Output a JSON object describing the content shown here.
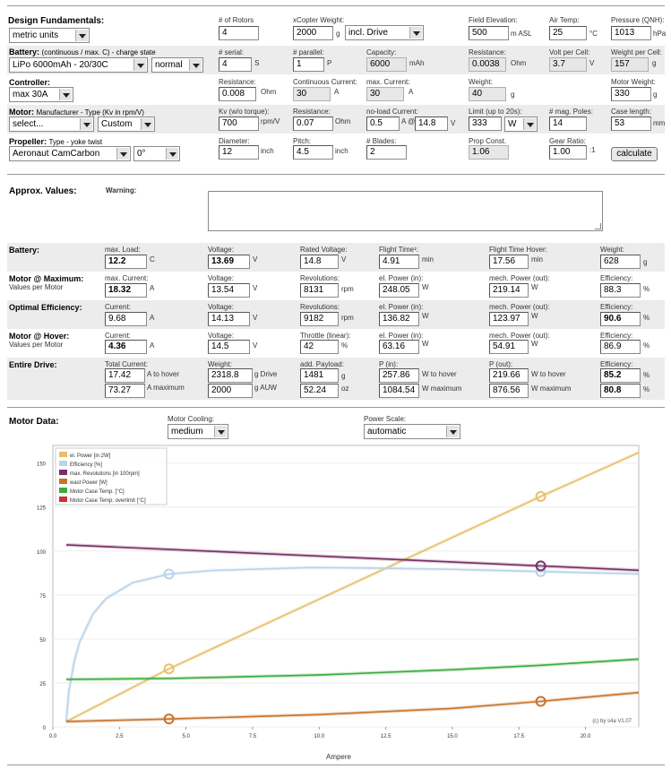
{
  "design": {
    "heading": "Design Fundamentals:",
    "units": "metric units",
    "rotors_label": "# of Rotors",
    "rotors": "4",
    "weight_label": "xCopter Weight:",
    "weight": "2000",
    "weight_unit": "g",
    "weight_mode": "incl. Drive",
    "elev_label": "Field Elevation:",
    "elev": "500",
    "elev_unit": "m ASL",
    "temp_label": "Air Temp:",
    "temp": "25",
    "temp_unit": "°C",
    "press_label": "Pressure (QNH):",
    "press": "1013",
    "press_unit": "hPa"
  },
  "battery_cfg": {
    "label": "Battery:",
    "hint": "(continuous / max. C) - charge state",
    "type": "LiPo 6000mAh - 20/30C",
    "state": "normal",
    "serial_label": "# serial:",
    "serial": "4",
    "serial_unit": "S",
    "parallel_label": "# parallel:",
    "parallel": "1",
    "parallel_unit": "P",
    "cap_label": "Capacity:",
    "cap": "6000",
    "cap_unit": "mAh",
    "res_label": "Resistance:",
    "res": "0.0038",
    "res_unit": "Ohm",
    "vcell_label": "Volt per Cell:",
    "vcell": "3.7",
    "vcell_unit": "V",
    "wcell_label": "Weight per Cell:",
    "wcell": "157",
    "wcell_unit": "g"
  },
  "controller": {
    "label": "Controller:",
    "type": "max 30A",
    "res_label": "Resistance:",
    "res": "0.008",
    "res_unit": "Ohm",
    "cont_label": "Continuous Current:",
    "cont": "30",
    "cont_unit": "A",
    "max_label": "max. Current:",
    "max": "30",
    "max_unit": "A",
    "w_label": "Weight:",
    "w": "40",
    "w_unit": "g"
  },
  "motor_cfg": {
    "label": "Motor:",
    "hint": "Manufacturer - Type (Kv in rpm/V)",
    "manufacturer": "select...",
    "type": "Custom",
    "mw_label": "Motor Weight:",
    "mw": "330",
    "mw_unit": "g",
    "kv_label": "Kv (w/o torque):",
    "kv": "700",
    "kv_unit": "rpm/V",
    "res_label": "Resistance:",
    "res": "0.07",
    "res_unit": "Ohm",
    "nl_label": "no-load Current:",
    "nl": "0.5",
    "nl_at": "A @",
    "nl_v": "14.8",
    "nl_v_unit": "V",
    "lim_label": "Limit (up to 20s):",
    "lim": "333",
    "lim_unit": "W",
    "poles_label": "# mag. Poles:",
    "poles": "14",
    "case_label": "Case length:",
    "case": "53",
    "case_unit": "mm"
  },
  "prop_cfg": {
    "label": "Propeller:",
    "hint": "Type - yoke twist",
    "type": "Aeronaut CamCarbon",
    "twist": "0°",
    "dia_label": "Diameter:",
    "dia": "12",
    "dia_unit": "inch",
    "pitch_label": "Pitch:",
    "pitch": "4.5",
    "pitch_unit": "inch",
    "blades_label": "# Blades:",
    "blades": "2",
    "const_label": "Prop Const.",
    "const": "1.06",
    "gear_label": "Gear Ratio:",
    "gear": "1.00",
    "gear_unit": ":1",
    "calc": "calculate"
  },
  "approx": {
    "heading": "Approx. Values:",
    "warning_label": "Warning:"
  },
  "res_battery": {
    "label": "Battery:",
    "load_label": "max. Load:",
    "load": "12.2",
    "load_unit": "C",
    "v_label": "Voltage:",
    "v": "13.69",
    "v_unit": "V",
    "rv_label": "Rated Voltage:",
    "rv": "14.8",
    "rv_unit": "V",
    "ft_label": "Flight Time¹:",
    "ft": "4.91",
    "ft_unit": "min",
    "fth_label": "Flight Time Hover:",
    "fth": "17.56",
    "fth_unit": "min",
    "w_label": "Weight:",
    "w": "628",
    "w_unit": "g"
  },
  "res_max": {
    "label": "Motor @ Maximum:",
    "sub": "Values per Motor",
    "cur_label": "max. Current:",
    "cur": "18.32",
    "cur_unit": "A",
    "v_label": "Voltage:",
    "v": "13.54",
    "v_unit": "V",
    "rev_label": "Revolutions:",
    "rev": "8131",
    "rev_unit": "rpm",
    "pin_label": "el. Power (in):",
    "pin": "248.05",
    "pin_unit": "W",
    "pout_label": "mech. Power (out):",
    "pout": "219.14",
    "pout_unit": "W",
    "eff_label": "Efficiency:",
    "eff": "88.3",
    "eff_unit": "%"
  },
  "res_opt": {
    "label": "Optimal Efficiency:",
    "cur_label": "Current:",
    "cur": "9.68",
    "cur_unit": "A",
    "v_label": "Voltage:",
    "v": "14.13",
    "v_unit": "V",
    "rev_label": "Revolutions:",
    "rev": "9182",
    "rev_unit": "rpm",
    "pin_label": "el. Power (in):",
    "pin": "136.82",
    "pin_unit": "W",
    "pout_label": "mech. Power (out):",
    "pout": "123.97",
    "pout_unit": "W",
    "eff_label": "Efficiency:",
    "eff": "90.6",
    "eff_unit": "%"
  },
  "res_hover": {
    "label": "Motor @ Hover:",
    "sub": "Values per Motor",
    "cur_label": "Current:",
    "cur": "4.36",
    "cur_unit": "A",
    "v_label": "Voltage:",
    "v": "14.5",
    "v_unit": "V",
    "thr_label": "Throttle (linear):",
    "thr": "42",
    "thr_unit": "%",
    "pin_label": "el. Power (in):",
    "pin": "63.16",
    "pin_unit": "W",
    "pout_label": "mech. Power (out):",
    "pout": "54.91",
    "pout_unit": "W",
    "eff_label": "Efficiency:",
    "eff": "86.9",
    "eff_unit": "%"
  },
  "res_drive": {
    "label": "Entire Drive:",
    "tc_label": "Total Current:",
    "tc_h": "17.42",
    "tc_h_unit": "A to hover",
    "tc_m": "73.27",
    "tc_m_unit": "A maximum",
    "w_label": "Weight:",
    "w_d": "2318.8",
    "w_d_unit": "g Drive",
    "w_a": "2000",
    "w_a_unit": "g AUW",
    "pay_label": "add. Payload:",
    "pay_g": "1481",
    "pay_g_unit": "g",
    "pay_oz": "52.24",
    "pay_oz_unit": "oz",
    "pin_label": "P (in):",
    "pin_h": "257.86",
    "pin_h_unit": "W to hover",
    "pin_m": "1084.54",
    "pin_m_unit": "W maximum",
    "pout_label": "P (out):",
    "pout_h": "219.66",
    "pout_h_unit": "W to hover",
    "pout_m": "876.56",
    "pout_m_unit": "W maximum",
    "eff_label": "Efficiency:",
    "eff_h": "85.2",
    "eff_h_unit": "%",
    "eff_m": "80.8",
    "eff_m_unit": "%"
  },
  "motor_data": {
    "heading": "Motor Data:",
    "cool_label": "Motor Cooling:",
    "cool": "medium",
    "scale_label": "Power Scale:",
    "scale": "automatic",
    "credit": "(c) by s4a   V1.07"
  },
  "chart_data": {
    "type": "line",
    "xlabel": "Ampere",
    "xlim": [
      0,
      22
    ],
    "ylim": [
      0,
      160
    ],
    "xticks": [
      0,
      2.5,
      5,
      7.5,
      10,
      12.5,
      15,
      17.5,
      20
    ],
    "xtick_labels": [
      "0.0",
      "2.5",
      "5.0",
      "7.5",
      "10.0",
      "12.5",
      "15.0",
      "17.5",
      "20.0"
    ],
    "yticks": [
      0,
      25,
      50,
      75,
      100,
      125,
      150
    ],
    "legend_position": "top-left",
    "series": [
      {
        "name": "el. Power [in 2W]",
        "color": "#e8c06a",
        "x": [
          0.5,
          4.36,
          18.32,
          22
        ],
        "y": [
          3,
          33,
          131,
          156
        ]
      },
      {
        "name": "Efficiency [%]",
        "color": "#b9d3ea",
        "x": [
          0.5,
          0.6,
          0.8,
          1,
          1.5,
          2,
          3,
          4.36,
          6,
          9.68,
          12,
          15,
          18.32,
          22
        ],
        "y": [
          3,
          20,
          37,
          48,
          64,
          73,
          82,
          86.9,
          88.9,
          90.6,
          90.3,
          89.6,
          88.3,
          87
        ]
      },
      {
        "name": "max. Revolutions [in 100rpm]",
        "color": "#7a2f64",
        "x": [
          0.5,
          18.32,
          22
        ],
        "y": [
          103.5,
          91.5,
          89
        ]
      },
      {
        "name": "wast Power [W]",
        "color": "#c8742c",
        "x": [
          0.5,
          4.36,
          10,
          15,
          18.32,
          22
        ],
        "y": [
          3,
          4.5,
          7,
          10.5,
          14.5,
          19.5
        ]
      },
      {
        "name": "Motor Case Temp. [°C]",
        "color": "#3cab3c",
        "x": [
          0.5,
          4.36,
          10,
          15,
          18.32,
          22
        ],
        "y": [
          27,
          27.5,
          29.5,
          32.5,
          35,
          38.5
        ]
      },
      {
        "name": "Motor Case Temp. overlimit [°C]",
        "color": "#cc3030",
        "x": [],
        "y": []
      }
    ],
    "markers": [
      {
        "series": 0,
        "x": 4.36,
        "y": 33
      },
      {
        "series": 0,
        "x": 18.32,
        "y": 131
      },
      {
        "series": 1,
        "x": 4.36,
        "y": 86.9
      },
      {
        "series": 1,
        "x": 18.32,
        "y": 88.3
      },
      {
        "series": 2,
        "x": 18.32,
        "y": 91.5
      },
      {
        "series": 3,
        "x": 4.36,
        "y": 4.5
      },
      {
        "series": 3,
        "x": 18.32,
        "y": 14.5
      }
    ]
  }
}
